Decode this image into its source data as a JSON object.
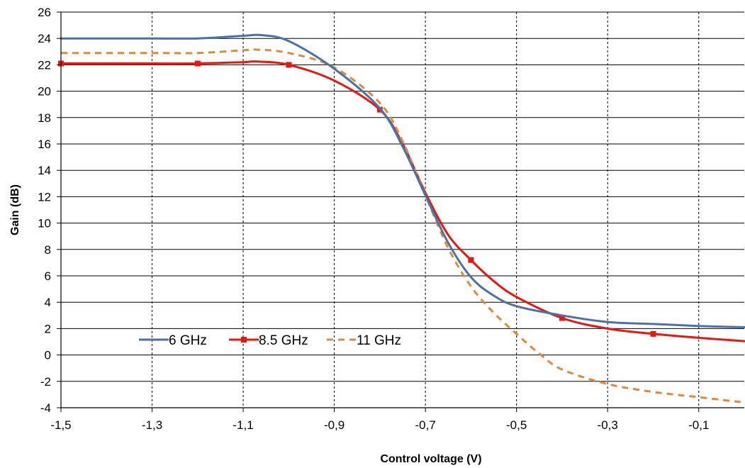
{
  "chart_data": {
    "type": "line",
    "xlabel": "Control voltage  (V)",
    "ylabel": "Gain (dB)",
    "xlim": [
      -1.5,
      0
    ],
    "ylim": [
      -4,
      26
    ],
    "x_ticks": [
      -1.5,
      -1.3,
      -1.1,
      -0.9,
      -0.7,
      -0.5,
      -0.3,
      -0.1
    ],
    "x_tick_labels": [
      "-1,5",
      "-1,3",
      "-1,1",
      "-0,9",
      "-0,7",
      "-0,5",
      "-0,3",
      "-0,1"
    ],
    "y_ticks": [
      -4,
      -2,
      0,
      2,
      4,
      6,
      8,
      10,
      12,
      14,
      16,
      18,
      20,
      22,
      24,
      26
    ],
    "y_tick_labels": [
      "-4",
      "-2",
      "0",
      "2",
      "4",
      "6",
      "8",
      "10",
      "12",
      "14",
      "16",
      "18",
      "20",
      "22",
      "24",
      "26"
    ],
    "grid": {
      "horizontal": "solid",
      "vertical": "dashed"
    },
    "legend_position": "lower-left inside plot",
    "series": [
      {
        "name": "6 GHz",
        "color": "#4a72a8",
        "style": "solid",
        "marker": "none",
        "x": [
          -1.5,
          -1.3,
          -1.2,
          -1.1,
          -1.06,
          -1.0,
          -0.9,
          -0.8,
          -0.75,
          -0.7,
          -0.65,
          -0.6,
          -0.55,
          -0.5,
          -0.4,
          -0.3,
          -0.2,
          -0.1,
          0.0
        ],
        "y": [
          24.0,
          24.0,
          24.0,
          24.2,
          24.25,
          23.8,
          21.7,
          18.7,
          15.8,
          12.1,
          8.5,
          5.9,
          4.5,
          3.7,
          3.0,
          2.5,
          2.35,
          2.2,
          2.1
        ]
      },
      {
        "name": "8.5 GHz",
        "color": "#e8170d",
        "style": "solid",
        "marker": "square",
        "x": [
          -1.5,
          -1.4,
          -1.3,
          -1.2,
          -1.1,
          -1.07,
          -1.0,
          -0.9,
          -0.8,
          -0.75,
          -0.7,
          -0.65,
          -0.6,
          -0.55,
          -0.5,
          -0.4,
          -0.3,
          -0.2,
          -0.1,
          0.0
        ],
        "y": [
          22.1,
          22.1,
          22.1,
          22.1,
          22.2,
          22.25,
          22.0,
          20.8,
          18.6,
          16.0,
          12.3,
          9.1,
          7.2,
          5.6,
          4.4,
          2.8,
          2.0,
          1.6,
          1.3,
          1.05
        ],
        "markers_x": [
          -1.5,
          -1.2,
          -1.0,
          -0.8,
          -0.6,
          -0.4,
          -0.2
        ],
        "markers_y": [
          22.1,
          22.1,
          22.0,
          18.6,
          7.2,
          2.8,
          1.6
        ]
      },
      {
        "name": "11 GHz",
        "color": "#de8a3c",
        "style": "dashed",
        "marker": "none",
        "x": [
          -1.5,
          -1.3,
          -1.2,
          -1.1,
          -1.07,
          -1.0,
          -0.9,
          -0.8,
          -0.75,
          -0.7,
          -0.65,
          -0.6,
          -0.55,
          -0.5,
          -0.45,
          -0.4,
          -0.3,
          -0.2,
          -0.1,
          0.0
        ],
        "y": [
          22.9,
          22.9,
          22.9,
          23.1,
          23.15,
          22.9,
          21.8,
          19.1,
          16.2,
          12.1,
          8.1,
          5.2,
          3.2,
          1.6,
          0.1,
          -1.1,
          -2.2,
          -2.8,
          -3.2,
          -3.6
        ]
      }
    ]
  }
}
